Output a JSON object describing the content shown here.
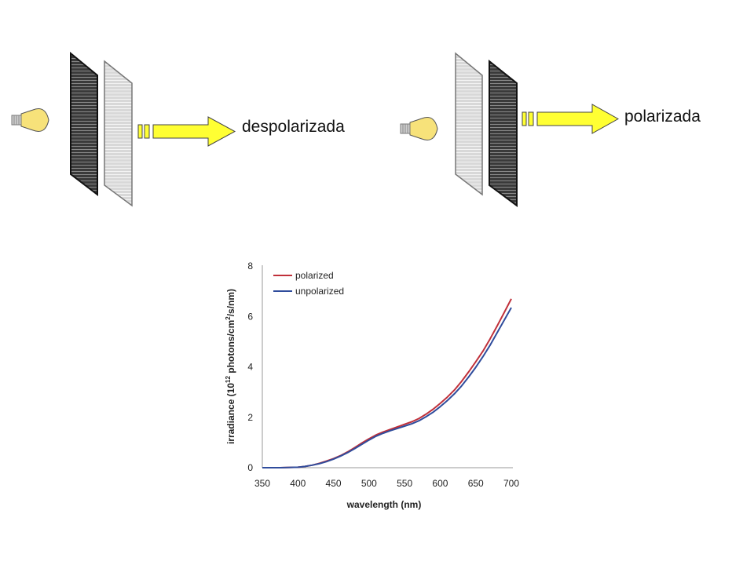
{
  "diagram": {
    "left_label": "despolarizada",
    "right_label": "polarizada",
    "arrow_color": "#ffff33",
    "bulb_color": "#f7e27a"
  },
  "chart_data": {
    "type": "line",
    "xlabel": "wavelength (nm)",
    "ylabel_parts": [
      "irradiance (10",
      "12",
      " photons/cm",
      "2",
      "/s/nm)"
    ],
    "xlim": [
      350,
      700
    ],
    "ylim": [
      0,
      8
    ],
    "xticks": [
      350,
      400,
      450,
      500,
      550,
      600,
      650,
      700
    ],
    "yticks": [
      0,
      2,
      4,
      6,
      8
    ],
    "legend_position": "top-left",
    "grid": false,
    "series": [
      {
        "name": "polarized",
        "color": "#c0303a",
        "x": [
          350,
          375,
          400,
          410,
          420,
          430,
          440,
          450,
          460,
          470,
          480,
          490,
          500,
          510,
          520,
          530,
          540,
          550,
          560,
          570,
          580,
          590,
          600,
          610,
          620,
          630,
          640,
          650,
          660,
          670,
          680,
          690,
          700
        ],
        "y": [
          0,
          0,
          0.02,
          0.05,
          0.1,
          0.17,
          0.26,
          0.36,
          0.48,
          0.63,
          0.8,
          0.98,
          1.15,
          1.3,
          1.42,
          1.52,
          1.62,
          1.72,
          1.82,
          1.95,
          2.12,
          2.32,
          2.55,
          2.8,
          3.08,
          3.42,
          3.8,
          4.2,
          4.62,
          5.1,
          5.62,
          6.15,
          6.7
        ]
      },
      {
        "name": "unpolarized",
        "color": "#2f4c9c",
        "x": [
          350,
          375,
          400,
          410,
          420,
          430,
          440,
          450,
          460,
          470,
          480,
          490,
          500,
          510,
          520,
          530,
          540,
          550,
          560,
          570,
          580,
          590,
          600,
          610,
          620,
          630,
          640,
          650,
          660,
          670,
          680,
          690,
          700
        ],
        "y": [
          0,
          0,
          0.02,
          0.05,
          0.1,
          0.16,
          0.24,
          0.34,
          0.46,
          0.6,
          0.76,
          0.93,
          1.1,
          1.25,
          1.37,
          1.47,
          1.56,
          1.65,
          1.74,
          1.86,
          2.02,
          2.2,
          2.42,
          2.66,
          2.93,
          3.24,
          3.6,
          3.98,
          4.4,
          4.85,
          5.35,
          5.85,
          6.35
        ]
      }
    ]
  }
}
